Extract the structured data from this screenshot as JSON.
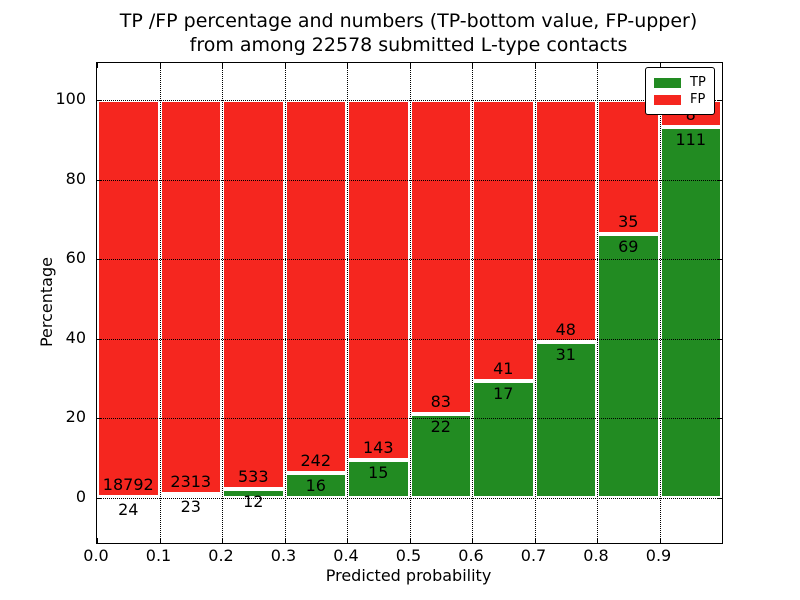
{
  "chart_data": {
    "type": "bar",
    "stacked": true,
    "normalized_to_percent": true,
    "title_line1": "TP /FP percentage and numbers (TP-bottom value, FP-upper)",
    "title_line2": "from among 22578 submitted L-type contacts",
    "total_submitted_contacts": 22578,
    "xlabel": "Predicted probability",
    "ylabel": "Percentage",
    "x_tick_labels": [
      "0.0",
      "0.1",
      "0.2",
      "0.3",
      "0.4",
      "0.5",
      "0.6",
      "0.7",
      "0.8",
      "0.9"
    ],
    "y_ticks": [
      0,
      20,
      40,
      60,
      80,
      100
    ],
    "xlim": [
      0.0,
      1.0
    ],
    "ylim": [
      -11.4,
      109.4
    ],
    "grid": "dotted-both-axes",
    "bar_width": 0.1,
    "colors": {
      "tp": "#228b22",
      "fp": "#f5261f",
      "bar_edge": "#ffffff"
    },
    "legend": [
      {
        "label": "TP",
        "color": "#228b22"
      },
      {
        "label": "FP",
        "color": "#f5261f"
      }
    ],
    "legend_position": "upper-right",
    "bins": [
      {
        "x_start": 0.0,
        "x_end": 0.1,
        "tp": 24,
        "fp": 18792
      },
      {
        "x_start": 0.1,
        "x_end": 0.2,
        "tp": 23,
        "fp": 2313
      },
      {
        "x_start": 0.2,
        "x_end": 0.3,
        "tp": 12,
        "fp": 533
      },
      {
        "x_start": 0.3,
        "x_end": 0.4,
        "tp": 16,
        "fp": 242
      },
      {
        "x_start": 0.4,
        "x_end": 0.5,
        "tp": 15,
        "fp": 143
      },
      {
        "x_start": 0.5,
        "x_end": 0.6,
        "tp": 22,
        "fp": 83
      },
      {
        "x_start": 0.6,
        "x_end": 0.7,
        "tp": 17,
        "fp": 41
      },
      {
        "x_start": 0.7,
        "x_end": 0.8,
        "tp": 31,
        "fp": 48
      },
      {
        "x_start": 0.8,
        "x_end": 0.9,
        "tp": 69,
        "fp": 35
      },
      {
        "x_start": 0.9,
        "x_end": 1.0,
        "tp": 111,
        "fp": 8
      }
    ]
  }
}
